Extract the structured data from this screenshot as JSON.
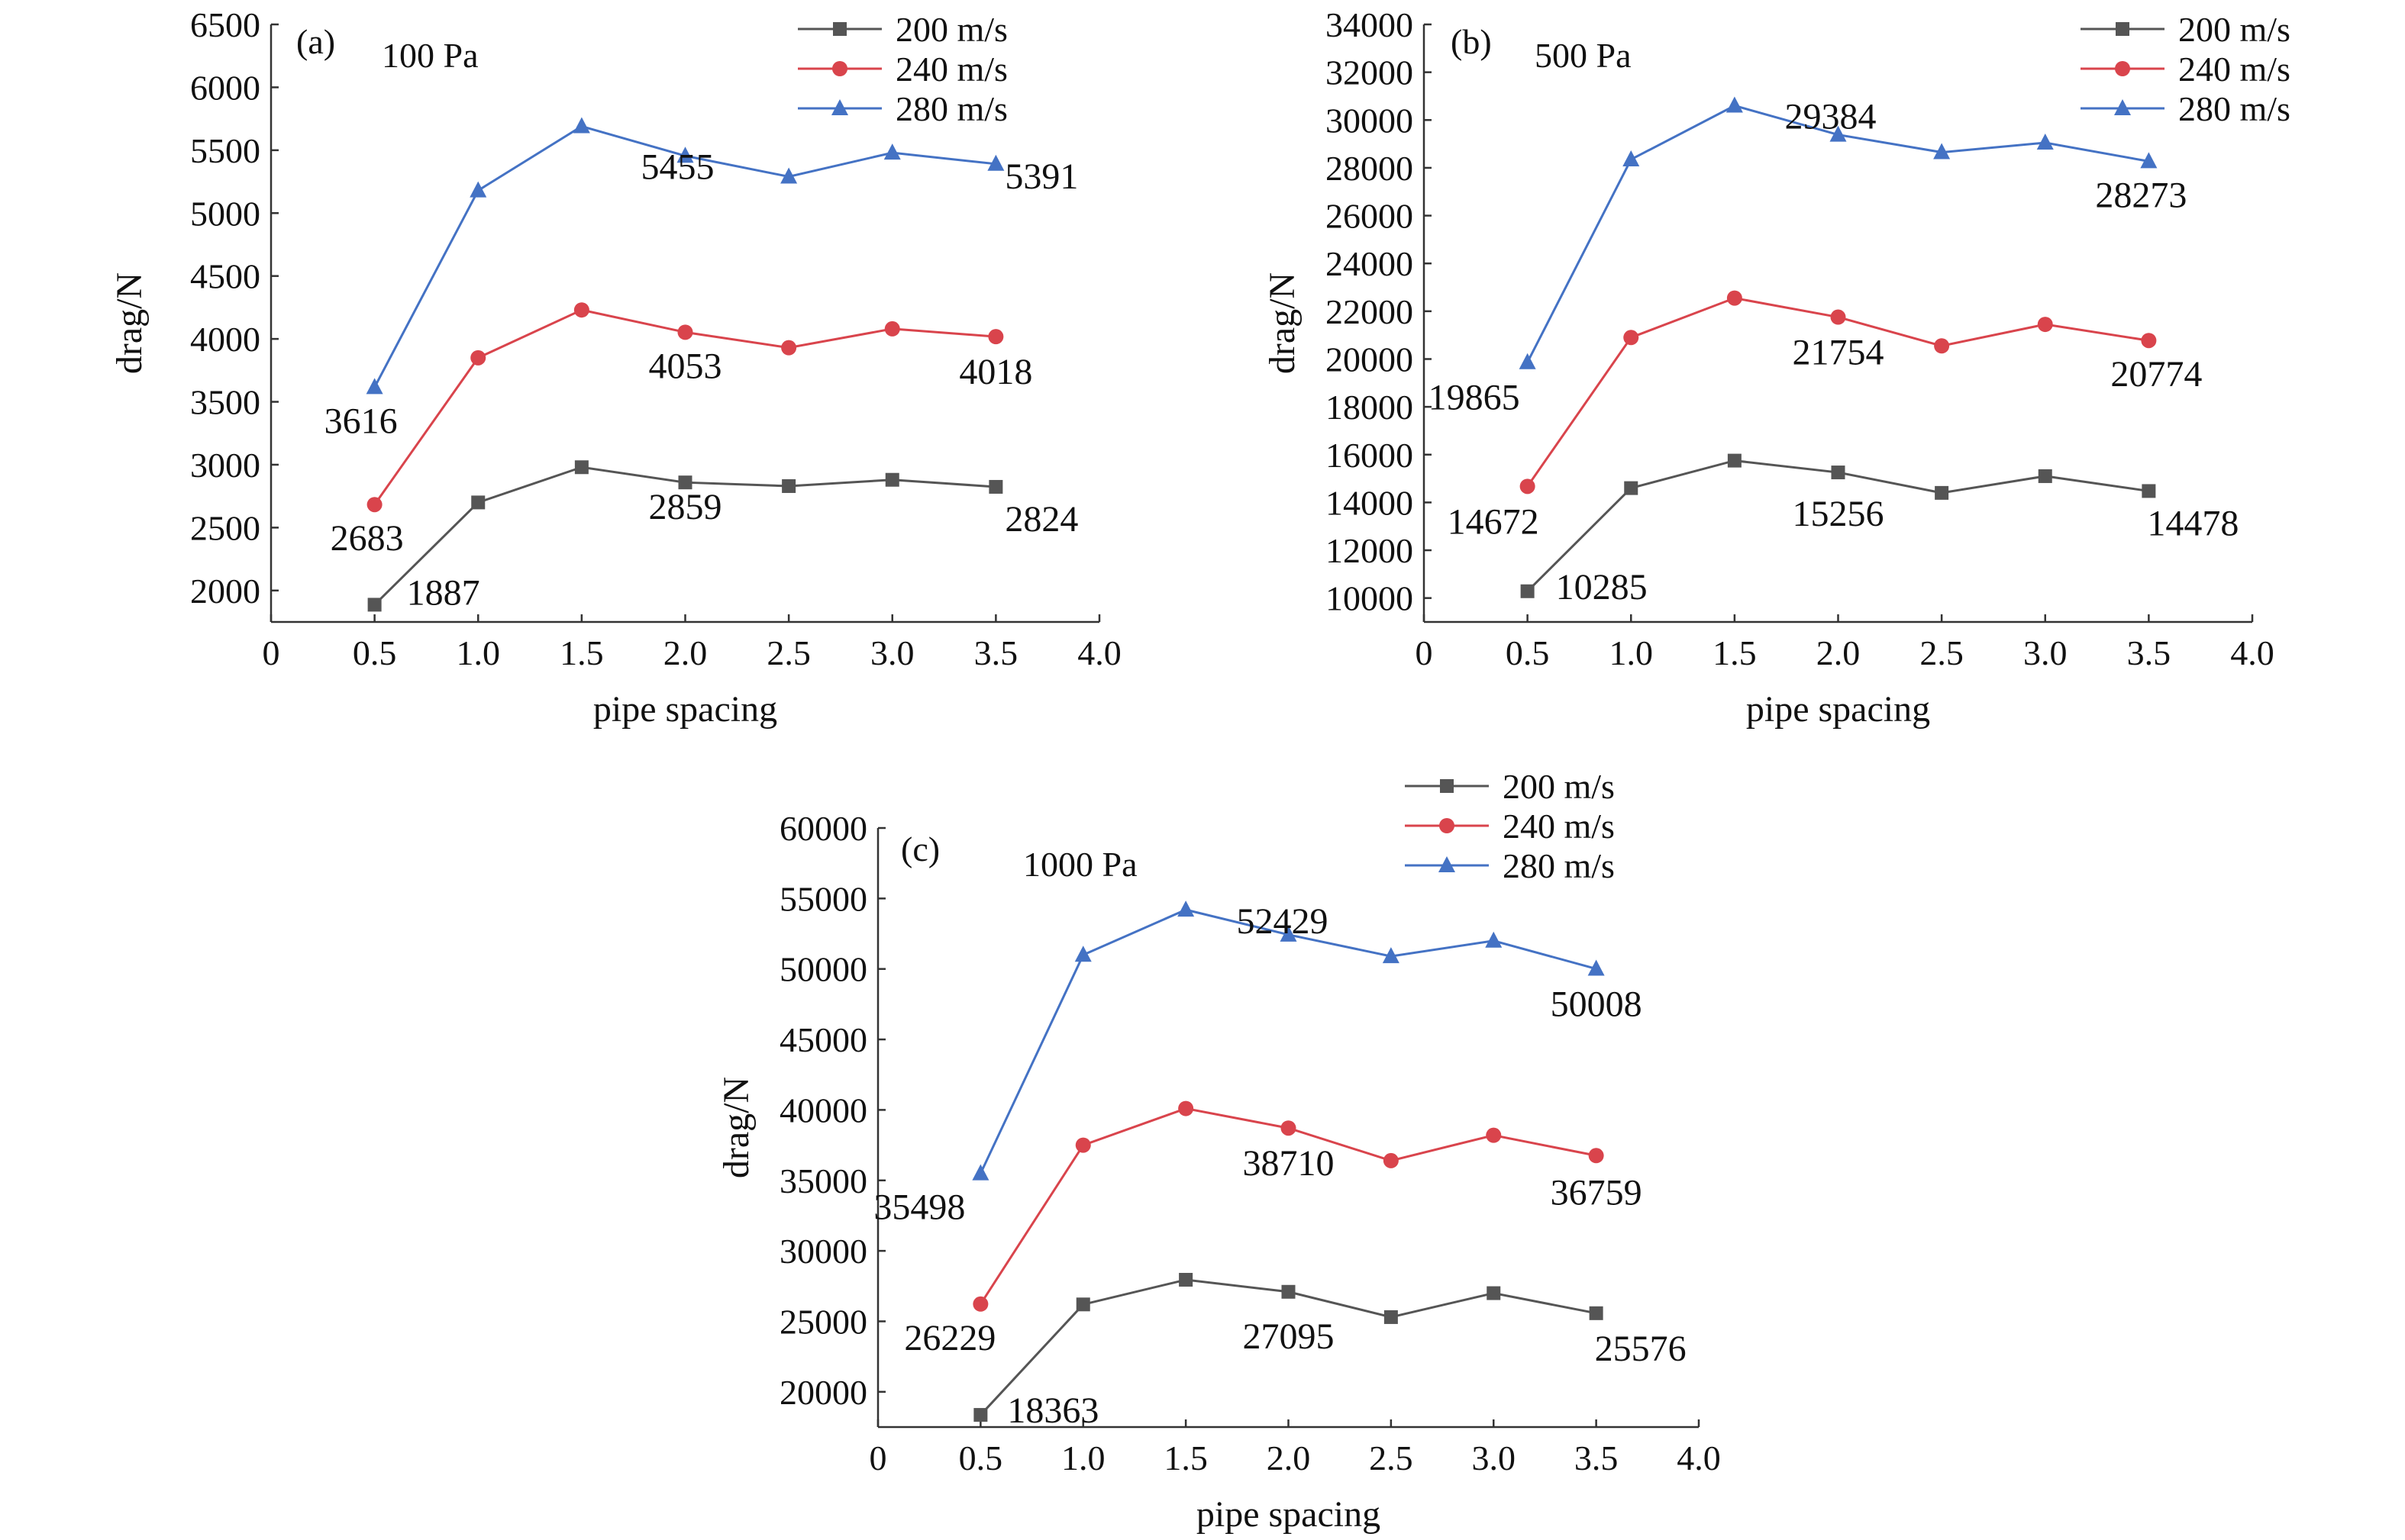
{
  "colors": {
    "200 m/s": "#555555",
    "240 m/s": "#d9444c",
    "280 m/s": "#4472c4"
  },
  "markers": {
    "200 m/s": "square",
    "240 m/s": "circle",
    "280 m/s": "triangle"
  },
  "chart_data": [
    {
      "type": "line",
      "panel": "(a)",
      "annotation": "100 Pa",
      "xlabel": "pipe spacing",
      "ylabel": "drag/N",
      "xlim": [
        0,
        4.0
      ],
      "xticks": [
        "0",
        "0.5",
        "1.0",
        "1.5",
        "2.0",
        "2.5",
        "3.0",
        "3.5",
        "4.0"
      ],
      "ylim": [
        1750,
        6500
      ],
      "yticks": [
        2000,
        2500,
        3000,
        3500,
        4000,
        4500,
        5000,
        5500,
        6000,
        6500
      ],
      "legend_position": "top-right",
      "x": [
        0.5,
        1.0,
        1.5,
        2.0,
        2.5,
        3.0,
        3.5
      ],
      "series": [
        {
          "name": "200 m/s",
          "values": [
            1887,
            2700,
            2980,
            2859,
            2830,
            2880,
            2824
          ]
        },
        {
          "name": "240 m/s",
          "values": [
            2683,
            3850,
            4230,
            4053,
            3930,
            4080,
            4018
          ]
        },
        {
          "name": "280 m/s",
          "values": [
            3616,
            5180,
            5690,
            5455,
            5290,
            5480,
            5391
          ]
        }
      ],
      "data_labels": [
        {
          "text": "1887",
          "series": 0,
          "point": 0
        },
        {
          "text": "2859",
          "series": 0,
          "point": 3
        },
        {
          "text": "2824",
          "series": 0,
          "point": 6
        },
        {
          "text": "2683",
          "series": 1,
          "point": 0
        },
        {
          "text": "4053",
          "series": 1,
          "point": 3
        },
        {
          "text": "4018",
          "series": 1,
          "point": 6
        },
        {
          "text": "3616",
          "series": 2,
          "point": 0
        },
        {
          "text": "5455",
          "series": 2,
          "point": 3
        },
        {
          "text": "5391",
          "series": 2,
          "point": 6
        }
      ]
    },
    {
      "type": "line",
      "panel": "(b)",
      "annotation": "500 Pa",
      "xlabel": "pipe spacing",
      "ylabel": "drag/N",
      "xlim": [
        0,
        4.0
      ],
      "xticks": [
        "0",
        "0.5",
        "1.0",
        "1.5",
        "2.0",
        "2.5",
        "3.0",
        "3.5",
        "4.0"
      ],
      "ylim": [
        9000,
        34000
      ],
      "yticks": [
        10000,
        12000,
        14000,
        16000,
        18000,
        20000,
        22000,
        24000,
        26000,
        28000,
        30000,
        32000,
        34000
      ],
      "legend_position": "top-right",
      "x": [
        0.5,
        1.0,
        1.5,
        2.0,
        2.5,
        3.0,
        3.5
      ],
      "series": [
        {
          "name": "200 m/s",
          "values": [
            10285,
            14600,
            15750,
            15256,
            14400,
            15100,
            14478
          ]
        },
        {
          "name": "240 m/s",
          "values": [
            14672,
            20900,
            22550,
            21754,
            20550,
            21450,
            20774
          ]
        },
        {
          "name": "280 m/s",
          "values": [
            19865,
            28350,
            30600,
            29384,
            28650,
            29050,
            28273
          ]
        }
      ],
      "data_labels": [
        {
          "text": "10285",
          "series": 0,
          "point": 0
        },
        {
          "text": "15256",
          "series": 0,
          "point": 3
        },
        {
          "text": "14478",
          "series": 0,
          "point": 6
        },
        {
          "text": "14672",
          "series": 1,
          "point": 0
        },
        {
          "text": "21754",
          "series": 1,
          "point": 3
        },
        {
          "text": "20774",
          "series": 1,
          "point": 6
        },
        {
          "text": "19865",
          "series": 2,
          "point": 0
        },
        {
          "text": "29384",
          "series": 2,
          "point": 3
        },
        {
          "text": "28273",
          "series": 2,
          "point": 6
        }
      ]
    },
    {
      "type": "line",
      "panel": "(c)",
      "annotation": "1000 Pa",
      "xlabel": "pipe spacing",
      "ylabel": "drag/N",
      "xlim": [
        0,
        4.0
      ],
      "xticks": [
        "0",
        "0.5",
        "1.0",
        "1.5",
        "2.0",
        "2.5",
        "3.0",
        "3.5",
        "4.0"
      ],
      "ylim": [
        17500,
        60000
      ],
      "yticks": [
        20000,
        25000,
        30000,
        35000,
        40000,
        45000,
        50000,
        55000,
        60000
      ],
      "legend_position": "top-right",
      "x": [
        0.5,
        1.0,
        1.5,
        2.0,
        2.5,
        3.0,
        3.5
      ],
      "series": [
        {
          "name": "200 m/s",
          "values": [
            18363,
            26200,
            27950,
            27095,
            25300,
            27000,
            25576
          ]
        },
        {
          "name": "240 m/s",
          "values": [
            26229,
            37500,
            40100,
            38710,
            36400,
            38200,
            36759
          ]
        },
        {
          "name": "280 m/s",
          "values": [
            35498,
            51000,
            54200,
            52429,
            50900,
            52000,
            50008
          ]
        }
      ],
      "data_labels": [
        {
          "text": "18363",
          "series": 0,
          "point": 0
        },
        {
          "text": "27095",
          "series": 0,
          "point": 3
        },
        {
          "text": "25576",
          "series": 0,
          "point": 6
        },
        {
          "text": "26229",
          "series": 1,
          "point": 0
        },
        {
          "text": "38710",
          "series": 1,
          "point": 3
        },
        {
          "text": "36759",
          "series": 1,
          "point": 6
        },
        {
          "text": "35498",
          "series": 2,
          "point": 0
        },
        {
          "text": "52429",
          "series": 2,
          "point": 3
        },
        {
          "text": "50008",
          "series": 2,
          "point": 6
        }
      ]
    }
  ]
}
